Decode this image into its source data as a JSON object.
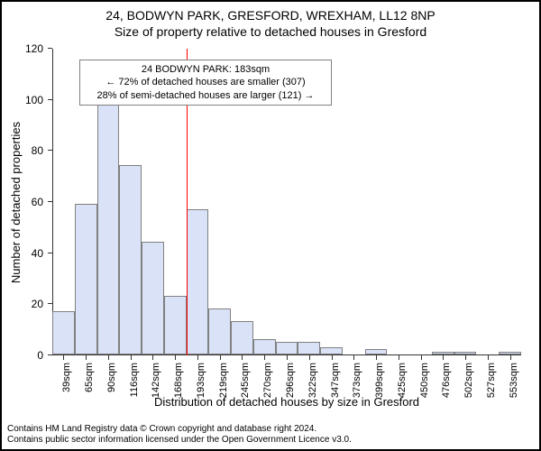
{
  "title_line1": "24, BODWYN PARK, GRESFORD, WREXHAM, LL12 8NP",
  "title_line2": "Size of property relative to detached houses in Gresford",
  "ylabel": "Number of detached properties",
  "xlabel": "Distribution of detached houses by size in Gresford",
  "footer_line1": "Contains HM Land Registry data © Crown copyright and database right 2024.",
  "footer_line2": "Contains public sector information licensed under the Open Government Licence v3.0.",
  "chart": {
    "type": "histogram",
    "bar_fill": "#d9e2f6",
    "bar_border": "#808080",
    "axis_color": "#333333",
    "background_color": "#ffffff",
    "marker_color": "#ff0000",
    "ylim": [
      0,
      120
    ],
    "yticks": [
      0,
      20,
      40,
      60,
      80,
      100,
      120
    ],
    "xticks": [
      "39sqm",
      "65sqm",
      "90sqm",
      "116sqm",
      "142sqm",
      "168sqm",
      "193sqm",
      "219sqm",
      "245sqm",
      "270sqm",
      "296sqm",
      "322sqm",
      "347sqm",
      "373sqm",
      "399sqm",
      "425sqm",
      "450sqm",
      "476sqm",
      "502sqm",
      "527sqm",
      "553sqm"
    ],
    "bars": [
      17,
      59,
      98,
      74,
      44,
      23,
      57,
      18,
      13,
      6,
      5,
      5,
      3,
      0,
      2,
      0,
      0,
      1,
      1,
      0,
      1
    ],
    "marker_bin_index": 6,
    "callout": {
      "line1": "24 BODWYN PARK: 183sqm",
      "line2": "← 72% of detached houses are smaller (307)",
      "line3": "28% of semi-detached houses are larger (121) →"
    }
  }
}
